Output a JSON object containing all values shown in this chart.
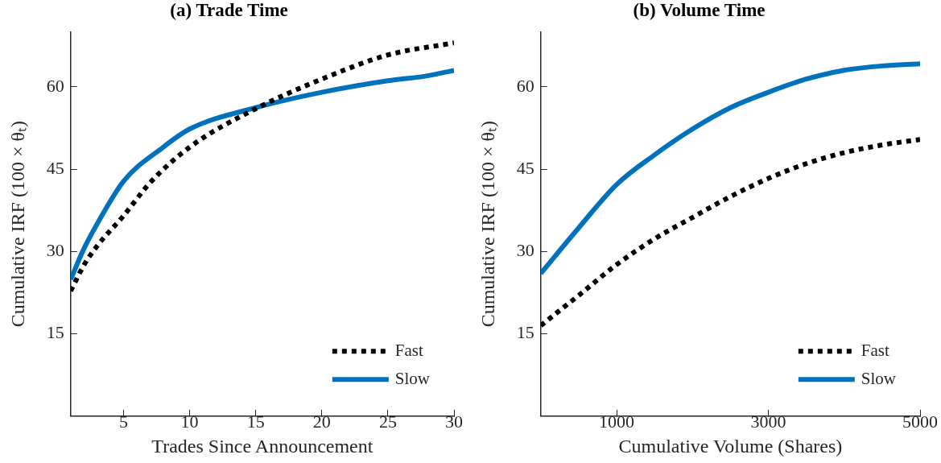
{
  "chart_data": [
    {
      "type": "line",
      "title": "(a) Trade Time",
      "xlabel": "Trades Since Announcement",
      "ylabel": "Cumulative IRF (100 × θₜ)",
      "xlim": [
        1,
        30
      ],
      "xticks": [
        5,
        10,
        15,
        20,
        25,
        30
      ],
      "ylim": [
        0,
        70
      ],
      "yticks": [
        15,
        30,
        45,
        60
      ],
      "grid": false,
      "legend": "bottom right",
      "marker": "none",
      "series": [
        {
          "name": "Fast",
          "color": "#000000",
          "line_style": "dotted",
          "x": [
            1,
            2,
            3,
            5,
            7,
            10,
            15,
            20,
            25,
            30
          ],
          "values": [
            22.8,
            27.5,
            31,
            36.5,
            42.5,
            49,
            56,
            61.4,
            65.8,
            68
          ]
        },
        {
          "name": "Slow",
          "color": "#0072bd",
          "line_style": "solid",
          "x": [
            1,
            2,
            3,
            5,
            8,
            10,
            15,
            20,
            25,
            28,
            30
          ],
          "values": [
            24.9,
            30.5,
            35,
            42.8,
            49,
            52.3,
            56.2,
            59,
            61.1,
            62,
            63
          ]
        }
      ]
    },
    {
      "type": "line",
      "title": "(b) Volume Time",
      "xlabel": "Cumulative Volume (Shares)",
      "ylabel": "Cumulative IRF (100 × θₜ)",
      "xlim": [
        0,
        5000
      ],
      "xticks": [
        1000,
        3000,
        5000
      ],
      "ylim": [
        0,
        70
      ],
      "yticks": [
        15,
        30,
        45,
        60
      ],
      "grid": false,
      "legend": "bottom right",
      "marker": "none",
      "series": [
        {
          "name": "Fast",
          "color": "#000000",
          "line_style": "dotted",
          "x": [
            0,
            500,
            1000,
            1500,
            2000,
            2500,
            3000,
            3500,
            4000,
            4500,
            5000
          ],
          "values": [
            16.5,
            22,
            27.6,
            32.3,
            36.2,
            40,
            43.3,
            46,
            48,
            49.4,
            50.4
          ]
        },
        {
          "name": "Slow",
          "color": "#0072bd",
          "line_style": "solid",
          "x": [
            0,
            500,
            1000,
            1500,
            2000,
            2500,
            3000,
            3500,
            4000,
            4500,
            5000
          ],
          "values": [
            26,
            34.3,
            42.2,
            47.6,
            52.3,
            56.2,
            59,
            61.4,
            63,
            63.8,
            64.2
          ]
        }
      ]
    }
  ]
}
